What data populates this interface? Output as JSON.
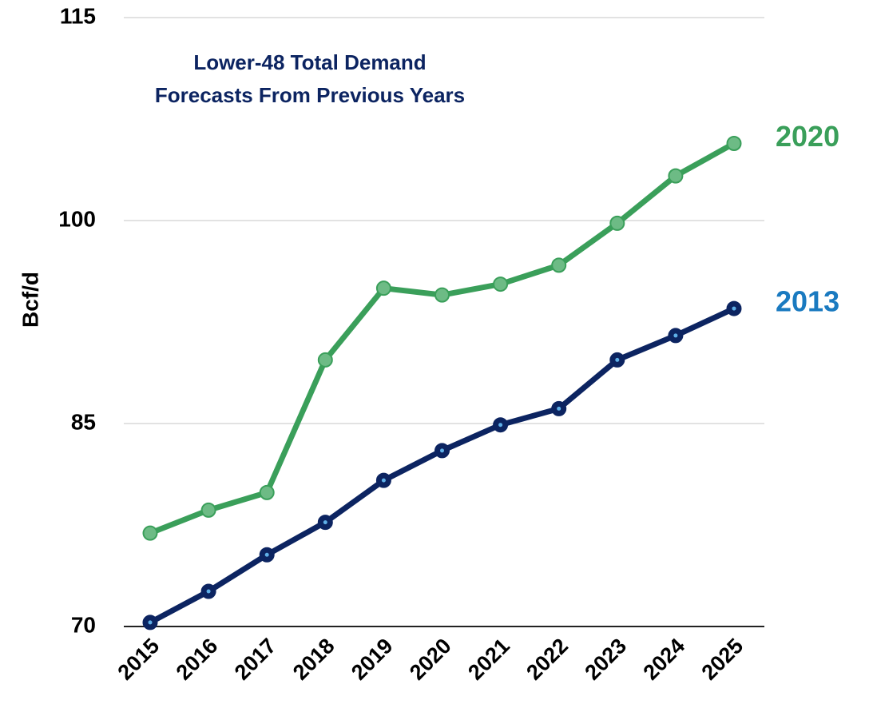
{
  "chart_data": {
    "type": "line",
    "title": [
      "Lower-48 Total Demand",
      "Forecasts From Previous Years"
    ],
    "ylabel": "Bcf/d",
    "categories": [
      "2015",
      "2016",
      "2017",
      "2018",
      "2019",
      "2020",
      "2021",
      "2022",
      "2023",
      "2024",
      "2025"
    ],
    "series": [
      {
        "name": "2020",
        "color": "#3a9f5a",
        "label_color": "#3a9f5a",
        "values": [
          76.9,
          78.6,
          79.9,
          89.7,
          95.0,
          94.5,
          95.3,
          96.7,
          99.8,
          103.3,
          105.7
        ]
      },
      {
        "name": "2013",
        "color": "#0c2461",
        "label_color": "#1a7ac0",
        "values": [
          70.3,
          72.6,
          75.3,
          77.7,
          80.8,
          83.0,
          84.9,
          86.1,
          89.7,
          91.5,
          93.5
        ]
      }
    ],
    "ylim": [
      70,
      115
    ],
    "yticks": [
      70,
      85,
      100,
      115
    ],
    "grid": true
  }
}
